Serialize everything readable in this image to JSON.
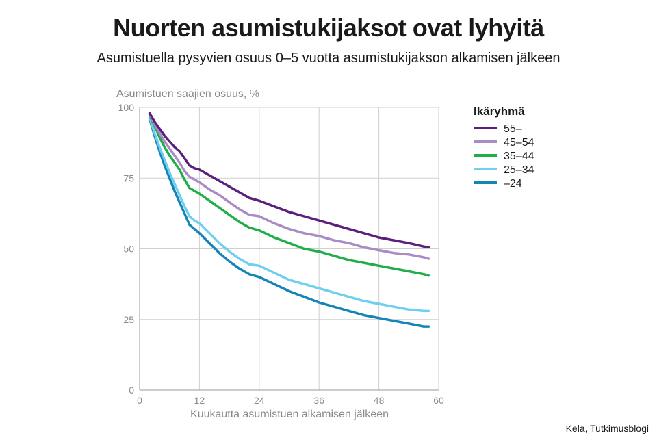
{
  "title": "Nuorten asumistukijaksot ovat lyhyitä",
  "subtitle": "Asumistuella pysyvien osuus 0–5 vuotta asumistukijakson alkamisen jälkeen",
  "source": "Kela, Tutkimusblogi",
  "chart_data": {
    "type": "line",
    "ylabel": "Asumistuen saajien osuus, %",
    "xlabel": "Kuukautta asumistuen alkamisen jälkeen",
    "xlim": [
      0,
      60
    ],
    "ylim": [
      0,
      100
    ],
    "xticks": [
      "0",
      "12",
      "24",
      "36",
      "48",
      "60"
    ],
    "yticks": [
      "0",
      "25",
      "50",
      "75",
      "100"
    ],
    "grid": true,
    "legend_title": "Ikäryhmä",
    "legend_position": "right",
    "x": [
      2,
      3,
      4,
      5,
      6,
      7,
      8,
      9,
      10,
      11,
      12,
      14,
      16,
      18,
      20,
      22,
      24,
      27,
      30,
      33,
      36,
      39,
      42,
      45,
      48,
      51,
      54,
      57,
      58
    ],
    "series": [
      {
        "name": "55–",
        "color": "#5b1f7c",
        "values": [
          98,
          95,
          92.5,
          90,
          88,
          86,
          84.5,
          82,
          79.5,
          78.5,
          78,
          76,
          74,
          72,
          70,
          68,
          67,
          65,
          63,
          61.5,
          60,
          58.5,
          57,
          55.5,
          54,
          53,
          52,
          50.8,
          50.5
        ]
      },
      {
        "name": "45–54",
        "color": "#a98bc5",
        "values": [
          97.5,
          94,
          91,
          88,
          85.5,
          83,
          80.5,
          77.5,
          75.5,
          74.5,
          73.5,
          71,
          69,
          66.5,
          64,
          62,
          61.5,
          59,
          57,
          55.5,
          54.5,
          53,
          52,
          50.5,
          49.5,
          48.5,
          48,
          47,
          46.5
        ]
      },
      {
        "name": "35–44",
        "color": "#1fae4a",
        "values": [
          97,
          93.5,
          89.5,
          86,
          83,
          80.5,
          78,
          74.5,
          71.5,
          70.5,
          69.5,
          67,
          64.5,
          62,
          59.5,
          57.5,
          56.5,
          54,
          52,
          50,
          49,
          47.5,
          46,
          45,
          44,
          43,
          42,
          41,
          40.5
        ]
      },
      {
        "name": "25–34",
        "color": "#6fcfee",
        "values": [
          96.5,
          91,
          86,
          81.5,
          77,
          73,
          69,
          65,
          61.5,
          60,
          59,
          55.5,
          52,
          49,
          46.5,
          44.5,
          44,
          41.5,
          39,
          37.5,
          36,
          34.5,
          33,
          31.5,
          30.5,
          29.5,
          28.5,
          28,
          28
        ]
      },
      {
        "name": "–24",
        "color": "#1585b8",
        "values": [
          96,
          90,
          84.5,
          79.5,
          75,
          70.5,
          66.5,
          62.5,
          58.5,
          57,
          55.5,
          52,
          48.5,
          45.5,
          43,
          41,
          40,
          37.5,
          35,
          33,
          31,
          29.5,
          28,
          26.5,
          25.5,
          24.5,
          23.5,
          22.5,
          22.5
        ]
      }
    ]
  }
}
